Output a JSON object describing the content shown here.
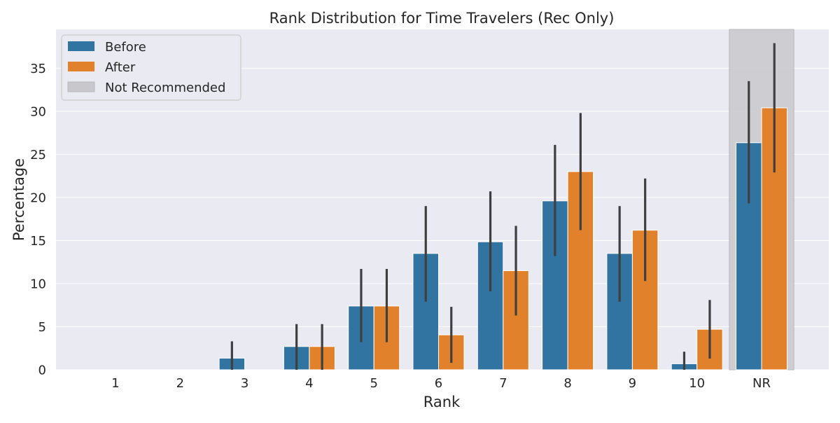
{
  "chart_data": {
    "type": "bar",
    "title": "Rank Distribution for Time Travelers (Rec Only)",
    "xlabel": "Rank",
    "ylabel": "Percentage",
    "categories": [
      "1",
      "2",
      "3",
      "4",
      "5",
      "6",
      "7",
      "8",
      "9",
      "10",
      "NR"
    ],
    "ylim": [
      0,
      39.5
    ],
    "yticks": [
      0,
      5,
      10,
      15,
      20,
      25,
      30,
      35
    ],
    "grid": true,
    "legend_position": "top-left",
    "highlight": {
      "label": "Not Recommended",
      "category": "NR",
      "color": "#c8c8cc"
    },
    "series": [
      {
        "name": "Before",
        "color": "#3274a1",
        "values": [
          0,
          0,
          1.35,
          2.7,
          7.4,
          13.5,
          14.85,
          19.6,
          13.5,
          0.7,
          26.35
        ],
        "ci_low": [
          0,
          0,
          0,
          0,
          3.2,
          7.9,
          9.1,
          13.2,
          7.9,
          0,
          19.3
        ],
        "ci_high": [
          0,
          0,
          3.3,
          5.3,
          11.7,
          19.0,
          20.7,
          26.1,
          19.0,
          2.1,
          33.5
        ]
      },
      {
        "name": "After",
        "color": "#e1812c",
        "values": [
          0,
          0,
          0,
          2.7,
          7.4,
          4.05,
          11.5,
          23.0,
          16.2,
          4.7,
          30.4
        ],
        "ci_low": [
          0,
          0,
          0,
          0,
          3.2,
          0.8,
          6.3,
          16.2,
          10.3,
          1.3,
          22.9
        ],
        "ci_high": [
          0,
          0,
          0,
          5.3,
          11.7,
          7.3,
          16.7,
          29.8,
          22.2,
          8.1,
          37.9
        ]
      }
    ]
  }
}
